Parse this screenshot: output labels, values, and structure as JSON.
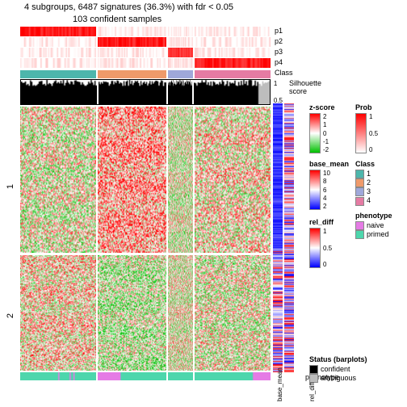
{
  "title": "4 subgroups, 6487 signatures (36.3%) with fdr < 0.05",
  "subtitle": "103 confident samples",
  "block_widths": [
    0.31,
    0.28,
    0.1,
    0.31
  ],
  "row_split": [
    0.56,
    0.44
  ],
  "row_labels": [
    "1",
    "2"
  ],
  "tracks": {
    "p1": {
      "label": "p1",
      "colors": [
        "#ff0000",
        "#ffffff"
      ]
    },
    "p2": {
      "label": "p2",
      "colors": [
        "#ff0000",
        "#ffffff"
      ]
    },
    "p3": {
      "label": "p3",
      "colors": [
        "#ff0000",
        "#ffffff"
      ]
    },
    "p4": {
      "label": "p4",
      "colors": [
        "#ff0000",
        "#ffffff"
      ]
    }
  },
  "p_patterns": {
    "p1": [
      0.9,
      0.05,
      0.05,
      0.05
    ],
    "p2": [
      0.05,
      0.9,
      0.1,
      0.05
    ],
    "p3": [
      0.05,
      0.05,
      0.8,
      0.05
    ],
    "p4": [
      0.05,
      0.05,
      0.1,
      0.9
    ]
  },
  "class_colors": [
    "#4db6ac",
    "#ef9a6a",
    "#9fa8da",
    "#e57ba3"
  ],
  "class_label": "Class",
  "silhouette": {
    "label": "Silhouette\nscore",
    "axis": [
      "1",
      "0.5"
    ],
    "color": "#000000",
    "ambiguous": "#bdbdbd"
  },
  "heatmap_colors": {
    "low": "#00c000",
    "mid": "#ffffff",
    "high": "#ff0000"
  },
  "side_columns": [
    {
      "label": "base_mean",
      "low": "#0000ff",
      "high": "#ff0000"
    },
    {
      "label": "rel_diff",
      "low": "#0000ff",
      "high": "#ff0000"
    }
  ],
  "pheno": {
    "label": "phenotype",
    "naive": "#e57be5",
    "primed": "#4dd6ac"
  },
  "legends": {
    "zscore": {
      "title": "z-score",
      "ticks": [
        "2",
        "1",
        "0",
        "-1",
        "-2"
      ],
      "high": "#ff0000",
      "mid": "#ffffff",
      "low": "#00c000"
    },
    "prob": {
      "title": "Prob",
      "ticks": [
        "1",
        "0.5",
        "0"
      ],
      "high": "#ff0000",
      "low": "#ffffff"
    },
    "basemean": {
      "title": "base_mean",
      "ticks": [
        "10",
        "8",
        "6",
        "4",
        "2"
      ],
      "high": "#ff0000",
      "mid": "#ffffff",
      "low": "#0000ff"
    },
    "class": {
      "title": "Class",
      "items": [
        [
          "1",
          "#4db6ac"
        ],
        [
          "2",
          "#ef9a6a"
        ],
        [
          "3",
          "#9fa8da"
        ],
        [
          "4",
          "#e57ba3"
        ]
      ]
    },
    "reldiff": {
      "title": "rel_diff",
      "ticks": [
        "1",
        "0.5",
        "0"
      ],
      "high": "#ff0000",
      "mid": "#ffffff",
      "low": "#0000ff"
    },
    "phenotype": {
      "title": "phenotype",
      "items": [
        [
          "naive",
          "#e57be5"
        ],
        [
          "primed",
          "#4dd6ac"
        ]
      ]
    },
    "status": {
      "title": "Status (barplots)",
      "items": [
        [
          "confident",
          "#000000"
        ],
        [
          "ambiguous",
          "#bdbdbd"
        ]
      ]
    }
  }
}
